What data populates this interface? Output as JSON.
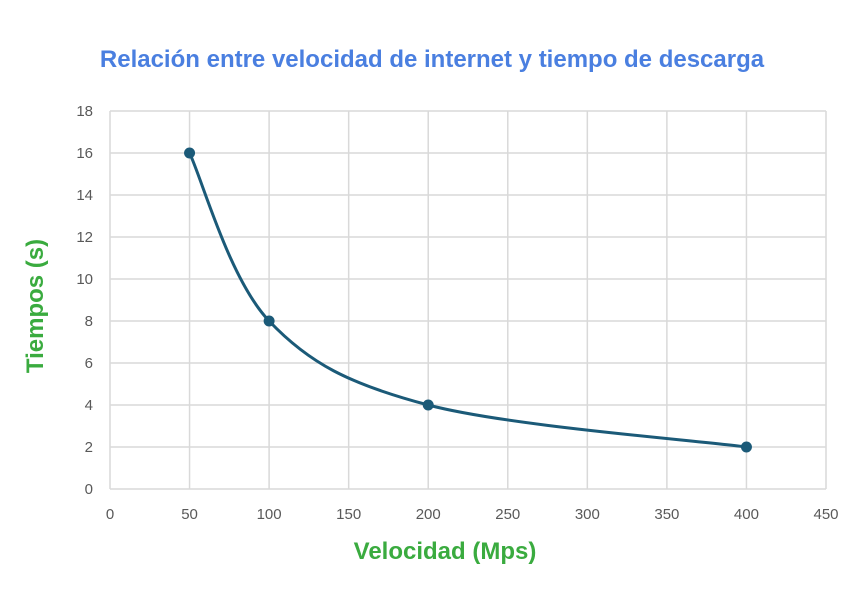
{
  "chart_data": {
    "type": "line",
    "title": "Relación entre velocidad de internet y tiempo de descarga",
    "xlabel": "Velocidad (Mps)",
    "ylabel": "Tiempos (s)",
    "x": [
      50,
      100,
      200,
      400
    ],
    "series": [
      {
        "values": [
          16,
          8,
          4,
          2
        ]
      }
    ],
    "xlim": [
      0,
      450
    ],
    "ylim": [
      0,
      18
    ],
    "xticks": [
      0,
      50,
      100,
      150,
      200,
      250,
      300,
      350,
      400,
      450
    ],
    "yticks": [
      0,
      2,
      4,
      6,
      8,
      10,
      12,
      14,
      16,
      18
    ],
    "smooth": true,
    "markers": true,
    "grid": true,
    "legend": "none"
  },
  "colors": {
    "title": "#4a7fe0",
    "axis_labels": "#3aab3f",
    "line": "#1b5a78",
    "grid": "#d9d9d9",
    "ticks": "#595959"
  }
}
